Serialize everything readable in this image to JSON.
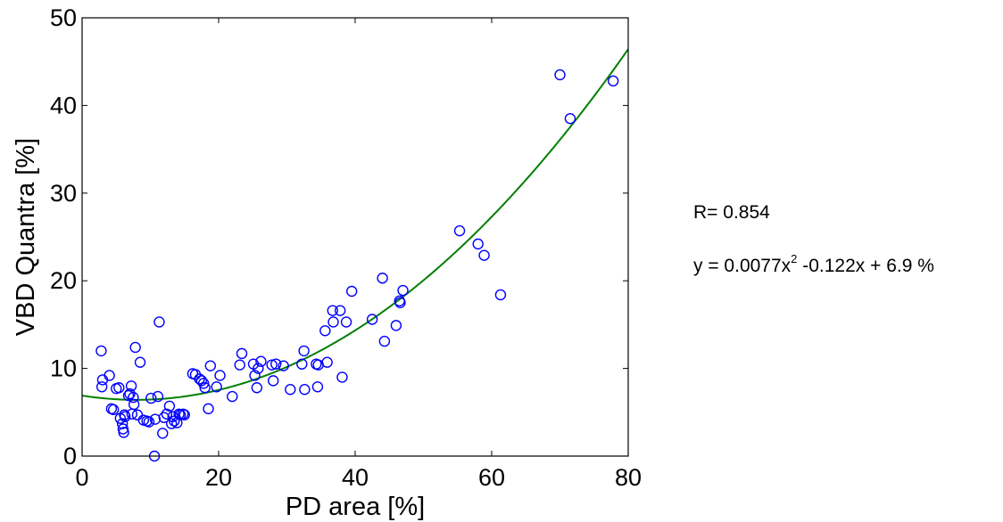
{
  "chart_data": {
    "type": "scatter",
    "xlabel": "PD area [%]",
    "ylabel": "VBD Quantra [%]",
    "xlim": [
      0,
      80
    ],
    "ylim": [
      0,
      50
    ],
    "xticks": [
      0,
      20,
      40,
      60,
      80
    ],
    "yticks": [
      0,
      10,
      20,
      30,
      40,
      50
    ],
    "xtick_labels": [
      "0",
      "20",
      "40",
      "60",
      "80"
    ],
    "ytick_labels": [
      "0",
      "10",
      "20",
      "30",
      "40",
      "50"
    ],
    "grid": false,
    "points": {
      "color": "#0000ff",
      "x": [
        2.8,
        3.0,
        2.9,
        4.0,
        4.3,
        4.6,
        5.0,
        5.4,
        5.6,
        5.9,
        6.0,
        6.1,
        6.2,
        6.3,
        6.8,
        7.0,
        7.2,
        7.3,
        7.5,
        7.6,
        7.8,
        8.1,
        8.5,
        9.0,
        9.5,
        9.8,
        10.1,
        10.6,
        10.7,
        11.1,
        11.3,
        11.8,
        12.0,
        12.4,
        12.8,
        13.1,
        13.3,
        13.5,
        13.9,
        14.2,
        14.4,
        14.8,
        15.0,
        16.2,
        16.6,
        17.2,
        17.5,
        17.8,
        18.0,
        18.5,
        18.8,
        19.7,
        20.2,
        22.0,
        23.1,
        23.4,
        25.1,
        25.3,
        25.6,
        25.8,
        26.2,
        27.8,
        28.0,
        28.4,
        29.5,
        30.5,
        32.2,
        32.5,
        32.6,
        34.3,
        34.5,
        34.6,
        35.6,
        35.9,
        36.7,
        36.8,
        37.8,
        38.1,
        38.7,
        39.5,
        42.5,
        44.0,
        44.3,
        46.0,
        46.5,
        46.6,
        47.0,
        55.3,
        58.0,
        58.9,
        61.3,
        70.0,
        71.5,
        77.8
      ],
      "y": [
        12.0,
        8.7,
        7.9,
        9.2,
        5.4,
        5.3,
        7.7,
        7.8,
        4.3,
        3.7,
        3.1,
        2.7,
        4.7,
        4.5,
        6.9,
        7.1,
        8.0,
        4.8,
        6.7,
        5.9,
        12.4,
        4.7,
        10.7,
        4.1,
        4.0,
        3.9,
        6.6,
        0.0,
        4.2,
        6.8,
        15.3,
        2.6,
        4.4,
        4.8,
        5.7,
        3.7,
        4.5,
        4.0,
        3.8,
        4.8,
        4.7,
        4.8,
        4.7,
        9.4,
        9.3,
        8.8,
        8.6,
        8.3,
        7.8,
        5.4,
        10.3,
        7.9,
        9.2,
        6.8,
        10.4,
        11.7,
        10.5,
        9.2,
        7.8,
        10.0,
        10.8,
        10.4,
        8.6,
        10.5,
        10.3,
        7.6,
        10.5,
        12.0,
        7.6,
        10.5,
        7.9,
        10.4,
        14.3,
        10.7,
        16.6,
        15.3,
        16.6,
        9.0,
        15.3,
        18.8,
        15.6,
        20.3,
        13.1,
        14.9,
        17.7,
        17.5,
        18.9,
        25.7,
        24.2,
        22.9,
        18.4,
        43.5,
        38.5,
        42.8
      ]
    },
    "fit": {
      "color": "#007f00",
      "a": 0.0077,
      "b": -0.122,
      "c": 6.9,
      "x_range": [
        0,
        80
      ]
    }
  },
  "annotations": {
    "r_label": "R= 0.854",
    "eq_prefix": "y = 0.0077x",
    "eq_exponent": "2",
    "eq_suffix": " -0.122x + 6.9 %"
  }
}
